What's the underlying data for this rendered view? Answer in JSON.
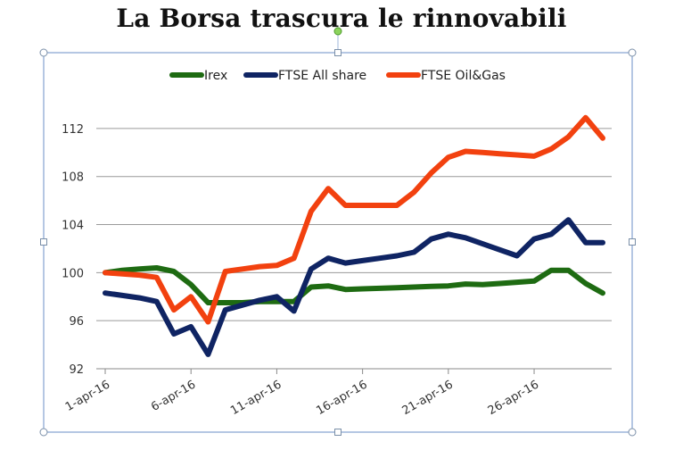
{
  "page": {
    "title": "La Borsa trascura le rinnovabili"
  },
  "chart_data": {
    "type": "line",
    "title": "La Borsa trascura le rinnovabili",
    "xlabel": "",
    "ylabel": "",
    "x": [
      "1-apr-16",
      "2-apr-16",
      "3-apr-16",
      "4-apr-16",
      "5-apr-16",
      "6-apr-16",
      "7-apr-16",
      "8-apr-16",
      "9-apr-16",
      "10-apr-16",
      "11-apr-16",
      "12-apr-16",
      "13-apr-16",
      "14-apr-16",
      "15-apr-16",
      "16-apr-16",
      "17-apr-16",
      "18-apr-16",
      "19-apr-16",
      "20-apr-16",
      "21-apr-16",
      "22-apr-16",
      "23-apr-16",
      "24-apr-16",
      "25-apr-16",
      "26-apr-16",
      "27-apr-16",
      "28-apr-16",
      "29-apr-16",
      "30-apr-16"
    ],
    "x_tick_labels": [
      "1-apr-16",
      "6-apr-16",
      "11-apr-16",
      "16-apr-16",
      "21-apr-16",
      "26-apr-16"
    ],
    "ylim": [
      92,
      114
    ],
    "y_ticks": [
      92,
      96,
      100,
      104,
      108,
      112
    ],
    "grid": true,
    "legend_position": "top",
    "series": [
      {
        "name": "Irex",
        "color": "#1e6b12",
        "values": [
          100,
          100.2,
          100.3,
          100.4,
          100.1,
          99,
          97.5,
          97.5,
          97.5,
          97.6,
          97.6,
          97.6,
          98.8,
          98.9,
          98.6,
          98.65,
          98.7,
          98.75,
          98.8,
          98.85,
          98.9,
          99.05,
          99.0,
          99.1,
          99.2,
          99.3,
          100.2,
          100.2,
          99.1,
          98.3
        ]
      },
      {
        "name": "FTSE All share",
        "color": "#0f2463",
        "values": [
          98.3,
          98.1,
          97.9,
          97.6,
          94.9,
          95.5,
          93.2,
          96.9,
          97.3,
          97.7,
          98.0,
          96.8,
          100.3,
          101.2,
          100.8,
          101.0,
          101.2,
          101.4,
          101.7,
          102.8,
          103.2,
          102.9,
          102.4,
          101.9,
          101.4,
          102.8,
          103.2,
          104.4,
          102.5,
          102.5
        ]
      },
      {
        "name": "FTSE Oil&Gas",
        "color": "#f2410f",
        "values": [
          100,
          99.9,
          99.8,
          99.6,
          96.9,
          98.0,
          95.9,
          100.1,
          100.3,
          100.5,
          100.6,
          101.2,
          105.1,
          107.0,
          105.6,
          105.6,
          105.6,
          105.6,
          106.7,
          108.3,
          109.6,
          110.1,
          110.0,
          109.9,
          109.8,
          109.7,
          110.3,
          111.3,
          112.9,
          111.2
        ]
      }
    ]
  }
}
